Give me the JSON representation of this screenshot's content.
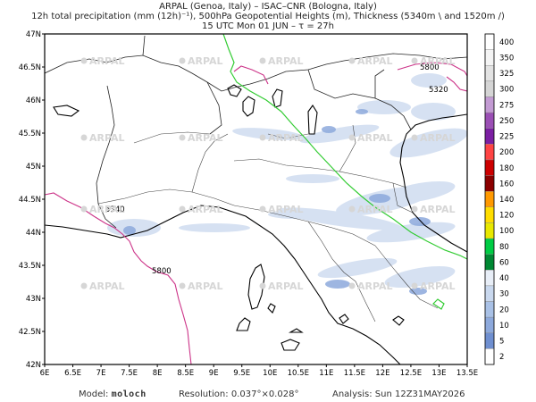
{
  "header": {
    "line1": "ARPAL (Genoa, Italy)  –  ISAC–CNR (Bologna, Italy)",
    "line2": "12h total precipitation (mm (12h)⁻¹), 500hPa Geopotential Heights (m), Thickness (5340m \\ and 1520m /)",
    "line3": "15 UTC Mon 01 JUN  –  τ = 27h"
  },
  "axes": {
    "lat_labels": [
      "47N",
      "46.5N",
      "46N",
      "45.5N",
      "45N",
      "44.5N",
      "44N",
      "43.5N",
      "43N",
      "42.5N",
      "42N"
    ],
    "lon_labels": [
      "6E",
      "6.5E",
      "7E",
      "7.5E",
      "8E",
      "8.5E",
      "9E",
      "9.5E",
      "10E",
      "10.5E",
      "11E",
      "11.5E",
      "12E",
      "12.5E",
      "13E",
      "13.5E"
    ]
  },
  "colorbar": {
    "levels": [
      "400",
      "350",
      "325",
      "300",
      "275",
      "250",
      "225",
      "200",
      "180",
      "160",
      "140",
      "120",
      "100",
      "80",
      "60",
      "40",
      "30",
      "20",
      "10",
      "5",
      "2"
    ],
    "colors": [
      "#ffffff",
      "#f4f4f4",
      "#e3e3e3",
      "#d5d5d5",
      "#c39bd3",
      "#9b4fb5",
      "#7b1fa2",
      "#ff4444",
      "#cc0000",
      "#8b0000",
      "#ff9900",
      "#ffdd00",
      "#e8e800",
      "#00cc44",
      "#008833",
      "#e8eef7",
      "#c9d8ee",
      "#a9c1e6",
      "#8da9dc",
      "#6f8fd0",
      "#ffffff"
    ]
  },
  "contour_labels": {
    "thickness_a": "5340",
    "thickness_b": "5800",
    "thickness_c": "5800",
    "thickness_d": "5320"
  },
  "watermarks": [
    "ARPAL",
    "ARPAL",
    "ARPAL",
    "ARPAL",
    "ARPAL",
    "ARPAL",
    "ARPAL",
    "ARPAL",
    "ARPAL",
    "ARPAL",
    "ARPAL",
    "ARPAL",
    "ARPAL",
    "ARPAL",
    "ARPAL",
    "ARPAL",
    "ARPAL",
    "ARPAL",
    "ARPAL",
    "ARPAL"
  ],
  "colors": {
    "precip_light": "#c9d8ee",
    "precip_mid": "#8da9dc",
    "green_contour": "#33cc33",
    "magenta_contour": "#cc3388",
    "coast": "#000000"
  },
  "footer": {
    "model_label": "Model:",
    "model_value": "moloch",
    "resolution_label": "Resolution:",
    "resolution_value": "0.037°×0.028°",
    "analysis_label": "Analysis:",
    "analysis_value": "Sun 12Z31MAY2026"
  }
}
